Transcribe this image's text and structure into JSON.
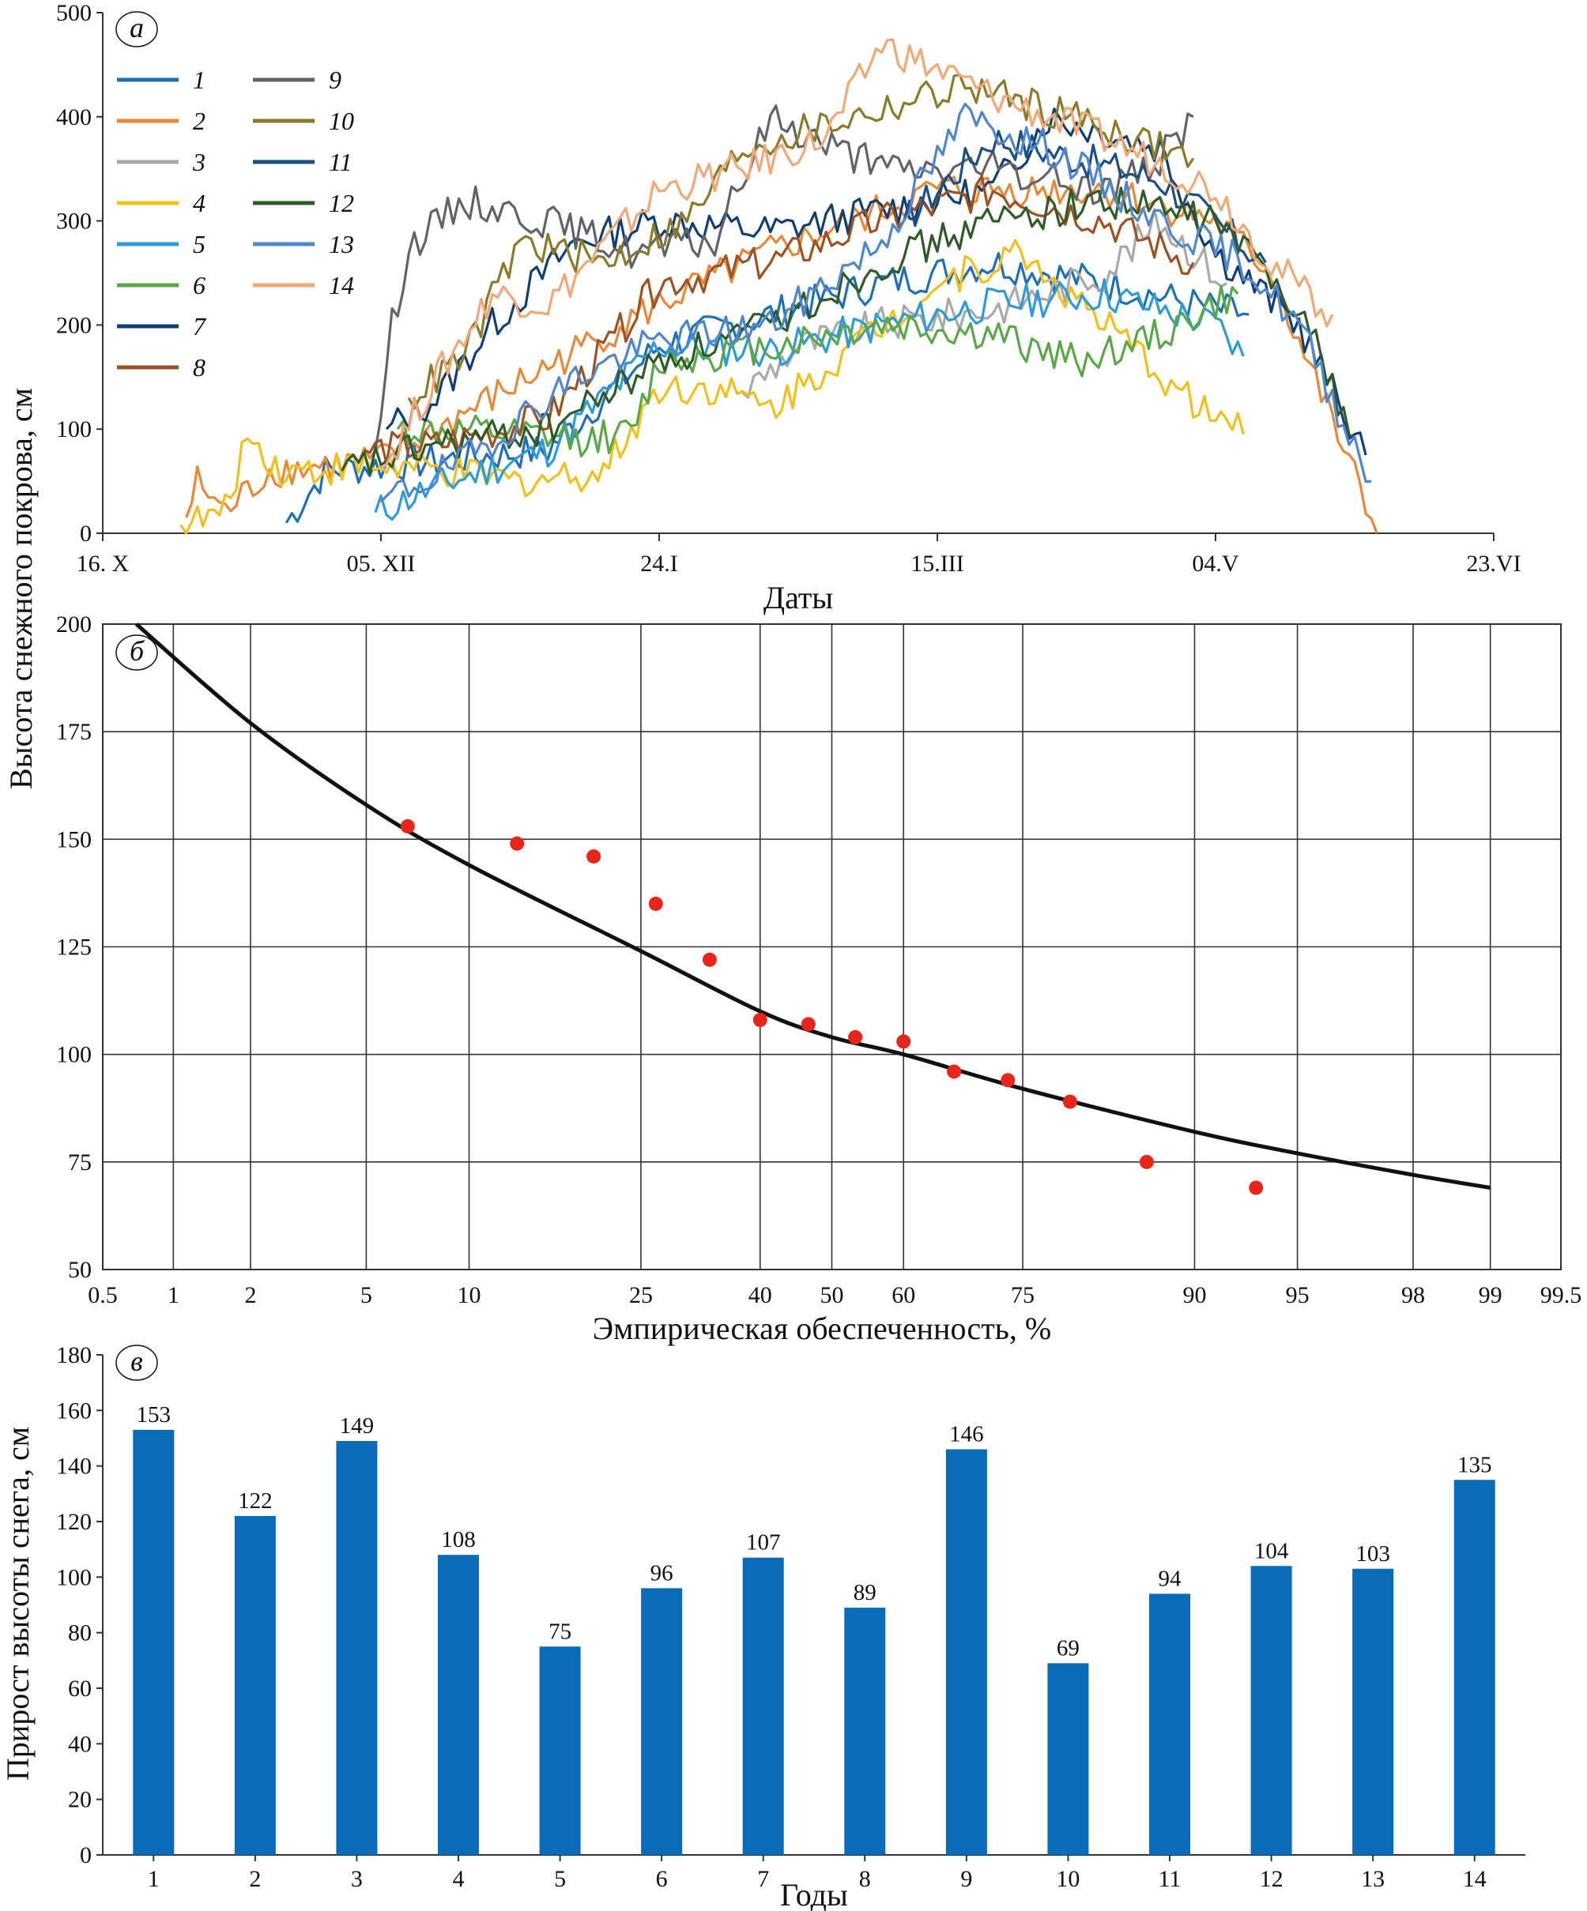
{
  "figure": {
    "shared_ylabel": "Высота снежного покрова, см",
    "colors": {
      "axis": "#333333",
      "grid": "#333333",
      "bar": "#0a6cb8",
      "point": "#e8251b",
      "curve": "#111111"
    }
  },
  "chart_data": [
    {
      "id": "a",
      "type": "line",
      "panel_letter": "а",
      "xlabel": "Даты",
      "ylabel": "Высота снежного покрова, см",
      "x_ticks": [
        "16. X",
        "05. XII",
        "24.I",
        "15.III",
        "04.V",
        "23.VI"
      ],
      "x_tick_days": [
        0,
        50,
        100,
        150,
        200,
        250
      ],
      "xlim": [
        0,
        250
      ],
      "ylim": [
        0,
        500
      ],
      "y_ticks": [
        0,
        100,
        200,
        300,
        400,
        500
      ],
      "legend_position": "top-left",
      "series": [
        {
          "name": "1",
          "color": "#1f6fb4",
          "start": 33,
          "end": 206,
          "key": [
            [
              33,
              10
            ],
            [
              40,
              60
            ],
            [
              60,
              70
            ],
            [
              80,
              80
            ],
            [
              100,
              180
            ],
            [
              120,
              210
            ],
            [
              140,
              240
            ],
            [
              160,
              260
            ],
            [
              180,
              240
            ],
            [
              200,
              215
            ],
            [
              206,
              210
            ]
          ]
        },
        {
          "name": "2",
          "color": "#e8893a",
          "start": 15,
          "end": 229,
          "key": [
            [
              15,
              15
            ],
            [
              17,
              50
            ],
            [
              22,
              20
            ],
            [
              30,
              60
            ],
            [
              50,
              70
            ],
            [
              80,
              160
            ],
            [
              100,
              220
            ],
            [
              120,
              270
            ],
            [
              150,
              330
            ],
            [
              180,
              330
            ],
            [
              200,
              300
            ],
            [
              210,
              250
            ],
            [
              220,
              120
            ],
            [
              229,
              0
            ]
          ]
        },
        {
          "name": "3",
          "color": "#a9a9a9",
          "start": 115,
          "end": 202,
          "key": [
            [
              115,
              135
            ],
            [
              125,
              180
            ],
            [
              140,
              200
            ],
            [
              160,
              215
            ],
            [
              180,
              250
            ],
            [
              190,
              300
            ],
            [
              202,
              240
            ]
          ]
        },
        {
          "name": "4",
          "color": "#f2c01e",
          "start": 14,
          "end": 205,
          "key": [
            [
              14,
              8
            ],
            [
              22,
              20
            ],
            [
              26,
              95
            ],
            [
              32,
              60
            ],
            [
              50,
              65
            ],
            [
              75,
              50
            ],
            [
              90,
              60
            ],
            [
              100,
              140
            ],
            [
              110,
              140
            ],
            [
              120,
              120
            ],
            [
              140,
              200
            ],
            [
              150,
              240
            ],
            [
              165,
              270
            ],
            [
              180,
              200
            ],
            [
              195,
              130
            ],
            [
              205,
              95
            ]
          ]
        },
        {
          "name": "5",
          "color": "#2e9ad9",
          "start": 49,
          "end": 205,
          "key": [
            [
              49,
              20
            ],
            [
              60,
              45
            ],
            [
              80,
              80
            ],
            [
              100,
              180
            ],
            [
              120,
              175
            ],
            [
              140,
              200
            ],
            [
              160,
              220
            ],
            [
              180,
              230
            ],
            [
              200,
              200
            ],
            [
              205,
              170
            ]
          ]
        },
        {
          "name": "6",
          "color": "#5aa747",
          "start": 53,
          "end": 204,
          "key": [
            [
              53,
              100
            ],
            [
              70,
              95
            ],
            [
              85,
              90
            ],
            [
              95,
              95
            ],
            [
              100,
              165
            ],
            [
              120,
              180
            ],
            [
              140,
              200
            ],
            [
              160,
              190
            ],
            [
              175,
              165
            ],
            [
              190,
              190
            ],
            [
              204,
              230
            ]
          ]
        },
        {
          "name": "7",
          "color": "#123f73",
          "start": 51,
          "end": 227,
          "key": [
            [
              51,
              100
            ],
            [
              60,
              130
            ],
            [
              70,
              200
            ],
            [
              85,
              280
            ],
            [
              100,
              300
            ],
            [
              120,
              290
            ],
            [
              140,
              310
            ],
            [
              160,
              330
            ],
            [
              170,
              400
            ],
            [
              190,
              370
            ],
            [
              200,
              270
            ],
            [
              215,
              200
            ],
            [
              227,
              75
            ]
          ]
        },
        {
          "name": "8",
          "color": "#9c5223",
          "start": 47,
          "end": 196,
          "key": [
            [
              47,
              80
            ],
            [
              60,
              85
            ],
            [
              80,
              110
            ],
            [
              100,
              240
            ],
            [
              120,
              260
            ],
            [
              140,
              300
            ],
            [
              160,
              330
            ],
            [
              180,
              300
            ],
            [
              196,
              260
            ]
          ]
        },
        {
          "name": "9",
          "color": "#606468",
          "start": 49,
          "end": 196,
          "key": [
            [
              49,
              80
            ],
            [
              52,
              200
            ],
            [
              55,
              275
            ],
            [
              65,
              320
            ],
            [
              80,
              300
            ],
            [
              95,
              270
            ],
            [
              110,
              280
            ],
            [
              120,
              400
            ],
            [
              140,
              350
            ],
            [
              160,
              350
            ],
            [
              180,
              330
            ],
            [
              190,
              360
            ],
            [
              196,
              400
            ]
          ]
        },
        {
          "name": "10",
          "color": "#8a7b2a",
          "start": 55,
          "end": 196,
          "key": [
            [
              55,
              130
            ],
            [
              65,
              170
            ],
            [
              75,
              280
            ],
            [
              90,
              260
            ],
            [
              105,
              300
            ],
            [
              115,
              370
            ],
            [
              135,
              400
            ],
            [
              155,
              430
            ],
            [
              175,
              400
            ],
            [
              196,
              360
            ]
          ]
        },
        {
          "name": "11",
          "color": "#1b4f86",
          "start": 144,
          "end": 209,
          "key": [
            [
              144,
              300
            ],
            [
              160,
              380
            ],
            [
              175,
              360
            ],
            [
              190,
              340
            ],
            [
              209,
              260
            ]
          ]
        },
        {
          "name": "12",
          "color": "#2f5b28",
          "start": 43,
          "end": 225,
          "key": [
            [
              43,
              60
            ],
            [
              60,
              85
            ],
            [
              80,
              100
            ],
            [
              100,
              165
            ],
            [
              120,
              200
            ],
            [
              140,
              260
            ],
            [
              160,
              300
            ],
            [
              180,
              320
            ],
            [
              200,
              300
            ],
            [
              215,
              220
            ],
            [
              225,
              90
            ]
          ]
        },
        {
          "name": "13",
          "color": "#4f86cc",
          "start": 50,
          "end": 228,
          "key": [
            [
              50,
              30
            ],
            [
              65,
              70
            ],
            [
              85,
              150
            ],
            [
              100,
              185
            ],
            [
              120,
              200
            ],
            [
              140,
              280
            ],
            [
              155,
              400
            ],
            [
              170,
              370
            ],
            [
              190,
              300
            ],
            [
              205,
              260
            ],
            [
              215,
              200
            ],
            [
              228,
              50
            ]
          ]
        },
        {
          "name": "14",
          "color": "#f0a878",
          "start": 50,
          "end": 221,
          "key": [
            [
              50,
              60
            ],
            [
              60,
              150
            ],
            [
              70,
              230
            ],
            [
              80,
              220
            ],
            [
              100,
              330
            ],
            [
              115,
              350
            ],
            [
              130,
              380
            ],
            [
              140,
              470
            ],
            [
              160,
              420
            ],
            [
              180,
              380
            ],
            [
              200,
              330
            ],
            [
              210,
              260
            ],
            [
              221,
              210
            ]
          ]
        }
      ]
    },
    {
      "id": "b",
      "type": "scatter",
      "panel_letter": "б",
      "xlabel": "Эмпирическая обеспеченность, %",
      "ylabel": "Высота снежного покрова, см",
      "x_scale": "probability",
      "x_ticks": [
        "0.5",
        "1",
        "2",
        "5",
        "10",
        "25",
        "40",
        "50",
        "60",
        "75",
        "90",
        "95",
        "98",
        "99",
        "99.5"
      ],
      "x_tick_values": [
        0.5,
        1,
        2,
        5,
        10,
        25,
        40,
        50,
        60,
        75,
        90,
        95,
        98,
        99,
        99.5
      ],
      "ylim": [
        50,
        200
      ],
      "y_ticks": [
        50,
        75,
        100,
        125,
        150,
        175,
        200
      ],
      "grid": true,
      "points": [
        {
          "x": 6.7,
          "y": 153
        },
        {
          "x": 13.3,
          "y": 149
        },
        {
          "x": 20.0,
          "y": 146
        },
        {
          "x": 26.7,
          "y": 135
        },
        {
          "x": 33.3,
          "y": 122
        },
        {
          "x": 40.0,
          "y": 108
        },
        {
          "x": 46.7,
          "y": 107
        },
        {
          "x": 53.3,
          "y": 104
        },
        {
          "x": 60.0,
          "y": 103
        },
        {
          "x": 66.7,
          "y": 96
        },
        {
          "x": 73.3,
          "y": 94
        },
        {
          "x": 80.0,
          "y": 89
        },
        {
          "x": 86.7,
          "y": 75
        },
        {
          "x": 93.3,
          "y": 69
        }
      ],
      "curve": [
        {
          "x": 0.7,
          "y": 200
        },
        {
          "x": 2,
          "y": 177
        },
        {
          "x": 5,
          "y": 158
        },
        {
          "x": 10,
          "y": 144
        },
        {
          "x": 25,
          "y": 124
        },
        {
          "x": 40,
          "y": 110
        },
        {
          "x": 50,
          "y": 104
        },
        {
          "x": 60,
          "y": 100
        },
        {
          "x": 75,
          "y": 92
        },
        {
          "x": 90,
          "y": 82
        },
        {
          "x": 95,
          "y": 77
        },
        {
          "x": 98,
          "y": 72
        },
        {
          "x": 99,
          "y": 69
        }
      ]
    },
    {
      "id": "c",
      "type": "bar",
      "panel_letter": "в",
      "xlabel": "Годы",
      "ylabel": "Прирост высоты снега, см",
      "categories": [
        "1",
        "2",
        "3",
        "4",
        "5",
        "6",
        "7",
        "8",
        "9",
        "10",
        "11",
        "12",
        "13",
        "14"
      ],
      "values": [
        153,
        122,
        149,
        108,
        75,
        96,
        107,
        89,
        146,
        69,
        94,
        104,
        103,
        135
      ],
      "data_labels": [
        "153",
        "122",
        "149",
        "108",
        "75",
        "96",
        "107",
        "89",
        "146",
        "69",
        "94",
        "104",
        "103",
        "135"
      ],
      "ylim": [
        0,
        180
      ],
      "y_ticks": [
        0,
        20,
        40,
        60,
        80,
        100,
        120,
        140,
        160,
        180
      ]
    }
  ]
}
